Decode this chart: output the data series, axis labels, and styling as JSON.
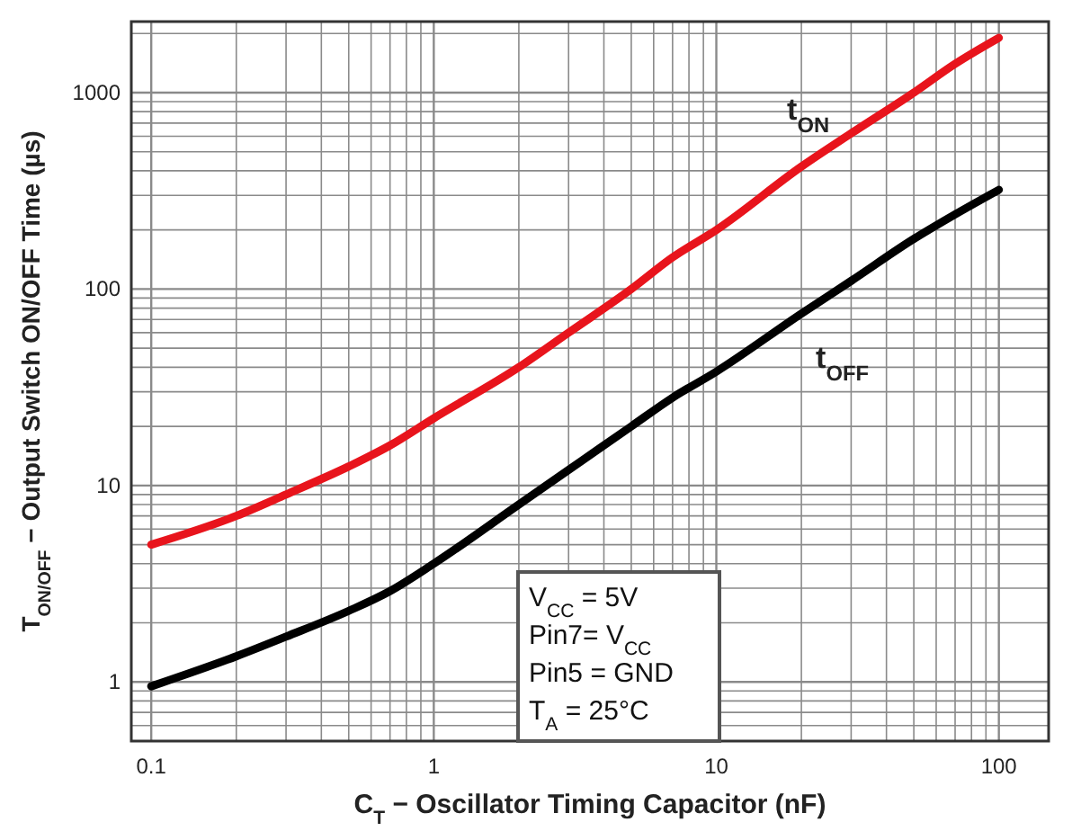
{
  "chart_data": {
    "type": "line",
    "xlabel": "C$_{T}$ − Oscillator Timing Capacitor (nF)",
    "ylabel": "T$_{ON/OFF}$ − Output Switch ON/OFF Time (µs)",
    "log": "xy",
    "grid": true,
    "line_style": "solid",
    "x": [
      0.1,
      0.2,
      0.3,
      0.5,
      0.7,
      1,
      2,
      3,
      5,
      7,
      10,
      20,
      30,
      50,
      70,
      100
    ],
    "series": [
      {
        "name": "t$_{ON}$",
        "color": "#e8141c",
        "values": [
          5,
          7,
          9,
          12.5,
          16,
          22,
          40,
          60,
          100,
          145,
          200,
          420,
          620,
          1000,
          1400,
          1900
        ]
      },
      {
        "name": "t$_{OFF}$",
        "color": "#000000",
        "values": [
          0.95,
          1.35,
          1.7,
          2.3,
          2.9,
          4,
          8,
          12,
          20,
          28,
          38,
          75,
          110,
          180,
          240,
          320
        ]
      }
    ],
    "xlim": [
      0.085,
      150
    ],
    "ylim": [
      0.5,
      2300
    ],
    "xticks": [
      0.1,
      {
        "value": 0.2,
        "label": null
      },
      {
        "value": 0.3,
        "label": null
      },
      {
        "value": 0.4,
        "label": null
      },
      {
        "value": 0.5,
        "label": null
      },
      {
        "value": 0.6,
        "label": null
      },
      {
        "value": 0.7,
        "label": null
      },
      {
        "value": 0.8,
        "label": null
      },
      {
        "value": 0.9,
        "label": null
      },
      1,
      {
        "value": 2,
        "label": null
      },
      {
        "value": 3,
        "label": null
      },
      {
        "value": 4,
        "label": null
      },
      {
        "value": 5,
        "label": null
      },
      {
        "value": 6,
        "label": null
      },
      {
        "value": 7,
        "label": null
      },
      {
        "value": 8,
        "label": null
      },
      {
        "value": 9,
        "label": null
      },
      10,
      {
        "value": 20,
        "label": null
      },
      {
        "value": 30,
        "label": null
      },
      {
        "value": 40,
        "label": null
      },
      {
        "value": 50,
        "label": null
      },
      {
        "value": 60,
        "label": null
      },
      {
        "value": 70,
        "label": null
      },
      {
        "value": 80,
        "label": null
      },
      {
        "value": 90,
        "label": null
      },
      100
    ],
    "yticks": [
      {
        "value": 0.6,
        "label": null
      },
      {
        "value": 0.7,
        "label": null
      },
      {
        "value": 0.8,
        "label": null
      },
      {
        "value": 0.9,
        "label": null
      },
      1,
      {
        "value": 2,
        "label": null
      },
      {
        "value": 3,
        "label": null
      },
      {
        "value": 4,
        "label": null
      },
      {
        "value": 5,
        "label": null
      },
      {
        "value": 6,
        "label": null
      },
      {
        "value": 7,
        "label": null
      },
      {
        "value": 8,
        "label": null
      },
      {
        "value": 9,
        "label": null
      },
      10,
      {
        "value": 20,
        "label": null
      },
      {
        "value": 30,
        "label": null
      },
      {
        "value": 40,
        "label": null
      },
      {
        "value": 50,
        "label": null
      },
      {
        "value": 60,
        "label": null
      },
      {
        "value": 70,
        "label": null
      },
      {
        "value": 80,
        "label": null
      },
      {
        "value": 90,
        "label": null
      },
      100,
      {
        "value": 200,
        "label": null
      },
      {
        "value": 300,
        "label": null
      },
      {
        "value": 400,
        "label": null
      },
      {
        "value": 500,
        "label": null
      },
      {
        "value": 600,
        "label": null
      },
      {
        "value": 700,
        "label": null
      },
      {
        "value": 800,
        "label": null
      },
      {
        "value": 900,
        "label": null
      },
      1000,
      {
        "value": 2000,
        "label": null
      }
    ],
    "annotations": [
      "V$_{CC}$ = 5V",
      "Pin7= V$_{CC}$",
      "Pin5 = GND",
      "T$_{A}$ = 25°C"
    ]
  }
}
